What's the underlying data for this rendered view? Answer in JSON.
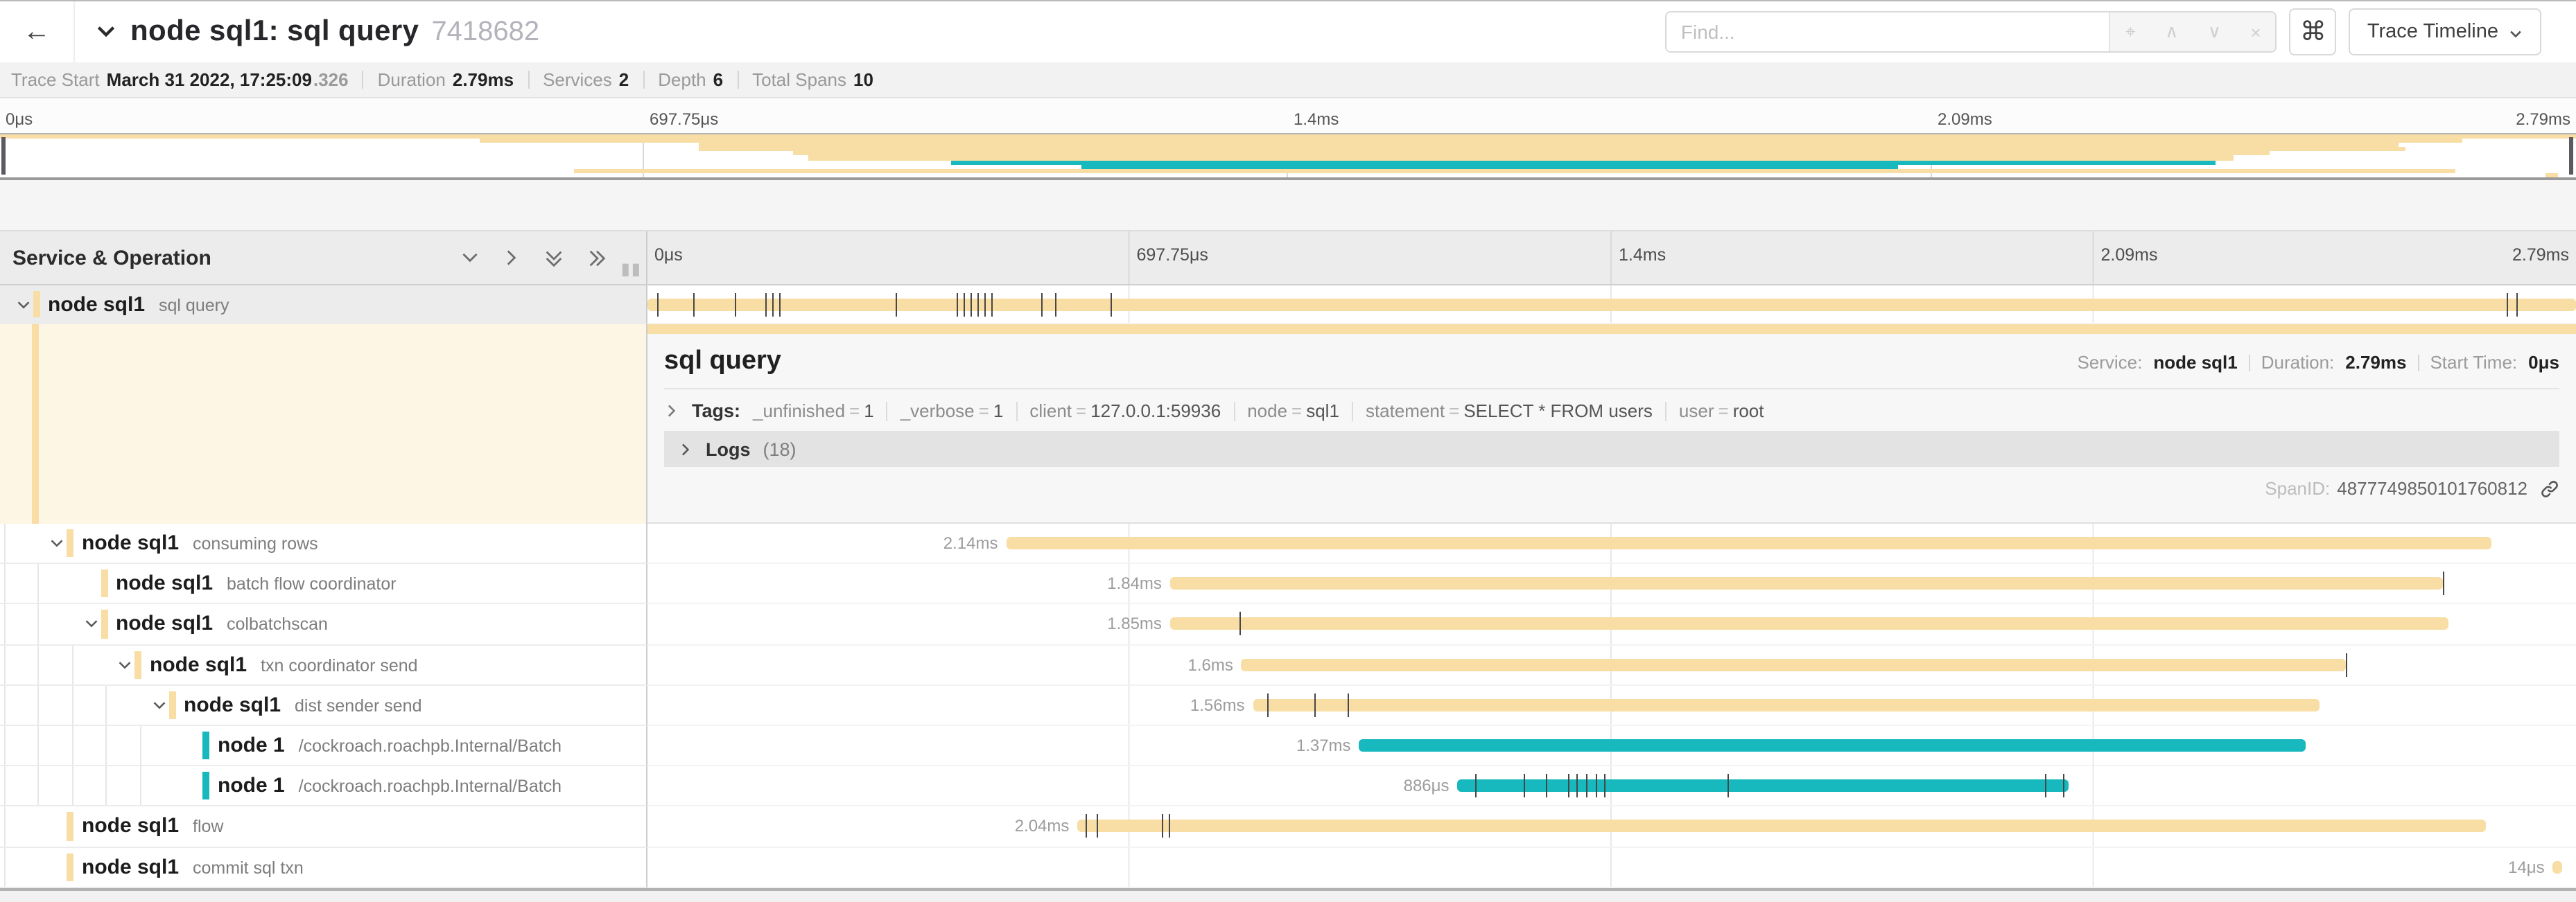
{
  "header": {
    "back_label": "←",
    "title": "node sql1: sql query",
    "trace_id_short": "7418682",
    "find_placeholder": "Find...",
    "locate_icon": "⌖",
    "prev_icon": "∧",
    "next_icon": "∨",
    "clear_icon": "×",
    "shortcut_label": "⌘",
    "view_selector_label": "Trace Timeline"
  },
  "trace_info": {
    "items": [
      {
        "label": "Trace Start",
        "value": "March 31 2022, 17:25:09",
        "suffix": ".326"
      },
      {
        "label": "Duration",
        "value": "2.79ms"
      },
      {
        "label": "Services",
        "value": "2"
      },
      {
        "label": "Depth",
        "value": "6"
      },
      {
        "label": "Total Spans",
        "value": "10"
      }
    ]
  },
  "timeline_ticks": [
    "0μs",
    "697.75μs",
    "1.4ms",
    "2.09ms",
    "2.79ms"
  ],
  "left_header": {
    "title": "Service & Operation"
  },
  "colors": {
    "tan": "#F8DDA4",
    "teal": "#17B8BE"
  },
  "detail": {
    "title": "sql query",
    "service_label": "Service:",
    "service": "node sql1",
    "duration_label": "Duration:",
    "duration": "2.79ms",
    "start_label": "Start Time:",
    "start": "0μs",
    "tags_label": "Tags:",
    "tags": [
      {
        "key": "_unfinished",
        "value": "1"
      },
      {
        "key": "_verbose",
        "value": "1"
      },
      {
        "key": "client",
        "value": "127.0.0.1:59936"
      },
      {
        "key": "node",
        "value": "sql1"
      },
      {
        "key": "statement",
        "value": "SELECT * FROM users"
      },
      {
        "key": "user",
        "value": "root"
      }
    ],
    "logs_label": "Logs",
    "logs_count": "(18)",
    "span_id_label": "SpanID:",
    "span_id": "4877749850101760812"
  },
  "spans": [
    {
      "service": "node sql1",
      "operation": "sql query",
      "depth": 0,
      "color": "tan",
      "selected": true,
      "chevron": true,
      "start_pct": 0,
      "end_pct": 100,
      "duration_label": "",
      "start_ms": 0,
      "duration_ms": 2.79,
      "ticks": [
        0.5,
        2.4,
        4.5,
        6.1,
        6.45,
        6.8,
        12.9,
        16.0,
        16.4,
        16.75,
        17.1,
        17.45,
        17.8,
        20.4,
        21.1,
        24.0,
        96.4,
        96.9
      ]
    },
    {
      "service": "node sql1",
      "operation": "consuming rows",
      "depth": 1,
      "color": "tan",
      "selected": false,
      "chevron": true,
      "start_pct": 18.6,
      "end_pct": 95.6,
      "duration_label": "2.14ms",
      "start_ms": 0.52,
      "duration_ms": 2.14,
      "ticks": []
    },
    {
      "service": "node sql1",
      "operation": "batch flow coordinator",
      "depth": 2,
      "color": "tan",
      "selected": false,
      "chevron": false,
      "start_pct": 27.1,
      "end_pct": 93.1,
      "duration_label": "1.84ms",
      "start_ms": 0.76,
      "duration_ms": 1.84,
      "ticks": [
        93.1
      ]
    },
    {
      "service": "node sql1",
      "operation": "colbatchscan",
      "depth": 2,
      "color": "tan",
      "selected": false,
      "chevron": true,
      "start_pct": 27.1,
      "end_pct": 93.4,
      "duration_label": "1.85ms",
      "start_ms": 0.76,
      "duration_ms": 1.85,
      "ticks": [
        30.7
      ]
    },
    {
      "service": "node sql1",
      "operation": "txn coordinator send",
      "depth": 3,
      "color": "tan",
      "selected": false,
      "chevron": true,
      "start_pct": 30.8,
      "end_pct": 88.1,
      "duration_label": "1.6ms",
      "start_ms": 0.86,
      "duration_ms": 1.6,
      "ticks": [
        88.1
      ]
    },
    {
      "service": "node sql1",
      "operation": "dist sender send",
      "depth": 4,
      "color": "tan",
      "selected": false,
      "chevron": true,
      "start_pct": 31.4,
      "end_pct": 86.7,
      "duration_label": "1.56ms",
      "start_ms": 0.88,
      "duration_ms": 1.56,
      "ticks": [
        32.1,
        34.6,
        36.3
      ]
    },
    {
      "service": "node 1",
      "operation": "/cockroach.roachpb.Internal/Batch",
      "depth": 5,
      "color": "teal",
      "selected": false,
      "chevron": false,
      "start_pct": 36.9,
      "end_pct": 86.0,
      "duration_label": "1.37ms",
      "start_ms": 1.03,
      "duration_ms": 1.37,
      "ticks": []
    },
    {
      "service": "node 1",
      "operation": "/cockroach.roachpb.Internal/Batch",
      "depth": 5,
      "color": "teal",
      "selected": false,
      "chevron": false,
      "start_pct": 42.0,
      "end_pct": 73.7,
      "duration_label": "886μs",
      "start_ms": 1.17,
      "duration_ms": 0.886,
      "ticks": [
        42.9,
        45.4,
        46.6,
        47.7,
        48.2,
        48.7,
        49.2,
        49.6,
        56.0,
        72.5,
        73.4
      ]
    },
    {
      "service": "node sql1",
      "operation": "flow",
      "depth": 1,
      "color": "tan",
      "selected": false,
      "chevron": false,
      "start_pct": 22.3,
      "end_pct": 95.3,
      "duration_label": "2.04ms",
      "start_ms": 0.62,
      "duration_ms": 2.04,
      "ticks": [
        22.7,
        23.3,
        26.7,
        27.0
      ]
    },
    {
      "service": "node sql1",
      "operation": "commit sql txn",
      "depth": 1,
      "color": "tan",
      "selected": false,
      "chevron": false,
      "start_pct": 98.8,
      "end_pct": 99.3,
      "duration_label": "14μs",
      "start_ms": 2.756,
      "duration_ms": 0.014,
      "ticks": []
    }
  ]
}
